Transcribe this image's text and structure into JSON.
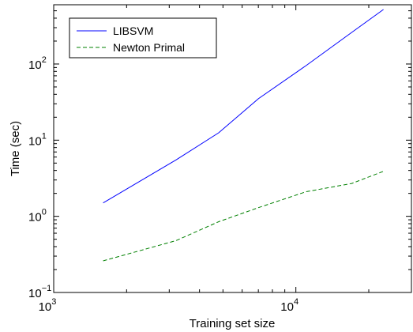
{
  "chart_data": {
    "type": "line",
    "title": "",
    "xlabel": "Training set size",
    "ylabel": "Time (sec)",
    "xscale": "log",
    "yscale": "log",
    "xlim": [
      1000,
      30000
    ],
    "ylim": [
      0.1,
      600
    ],
    "x_ticks": [
      {
        "value": 1000,
        "base": "10",
        "exp": "3"
      },
      {
        "value": 10000,
        "base": "10",
        "exp": "4"
      }
    ],
    "y_ticks": [
      {
        "value": 0.1,
        "base": "10",
        "exp": "−1"
      },
      {
        "value": 1,
        "base": "10",
        "exp": "0"
      },
      {
        "value": 10,
        "base": "10",
        "exp": "1"
      },
      {
        "value": 100,
        "base": "10",
        "exp": "2"
      }
    ],
    "grid": false,
    "legend_position": "top-left",
    "series": [
      {
        "name": "LIBSVM",
        "color": "#0000ff",
        "dash": "solid",
        "points": [
          [
            1600,
            1.5
          ],
          [
            3200,
            5.5
          ],
          [
            4800,
            12.5
          ],
          [
            7000,
            35
          ],
          [
            11000,
            95
          ],
          [
            17000,
            260
          ],
          [
            23000,
            520
          ]
        ]
      },
      {
        "name": "Newton Primal",
        "color": "#008000",
        "dash": "dashed",
        "points": [
          [
            1600,
            0.26
          ],
          [
            3200,
            0.48
          ],
          [
            4800,
            0.85
          ],
          [
            7000,
            1.3
          ],
          [
            11000,
            2.1
          ],
          [
            17000,
            2.7
          ],
          [
            23000,
            3.9
          ]
        ]
      }
    ]
  }
}
